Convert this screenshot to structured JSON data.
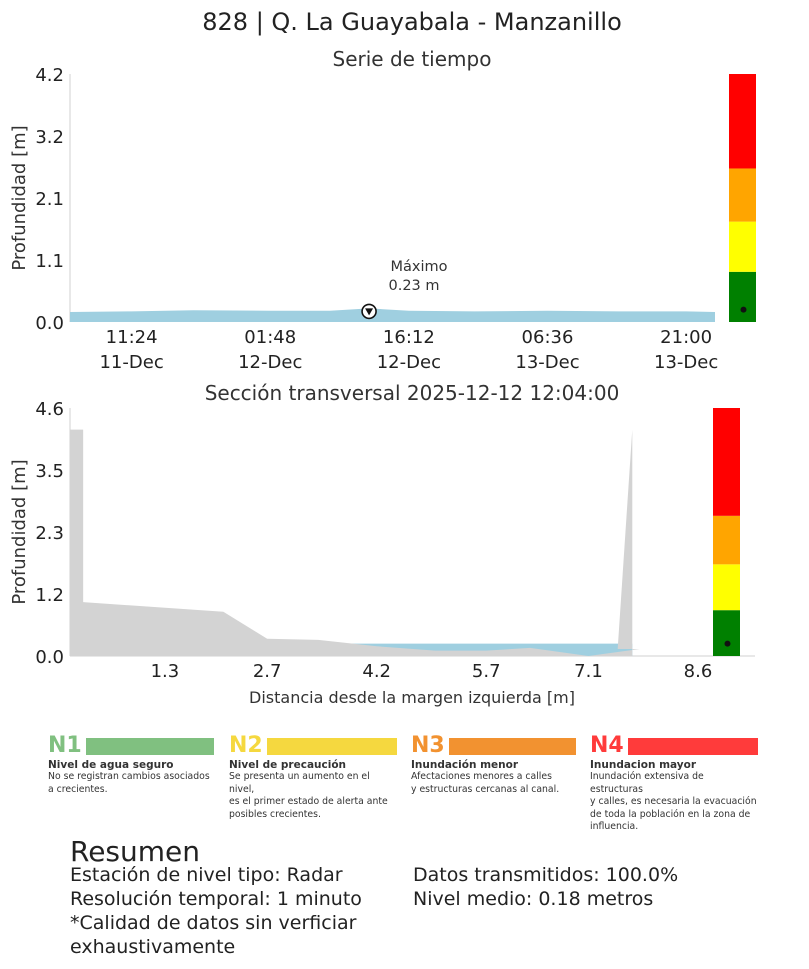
{
  "page": {
    "title": "828 | Q. La Guayabala - Manzanillo"
  },
  "colors": {
    "water": "#9fcfe0",
    "ground": "#d3d3d3",
    "n1": "#008000",
    "n2": "#ffff00",
    "n3": "#ffa500",
    "n4": "#ff0000"
  },
  "chart_data": [
    {
      "type": "area",
      "title": "Serie de tiempo",
      "ylabel": "Profundidad [m]",
      "xlabel": "",
      "ylim": [
        0,
        4.2
      ],
      "yticks": [
        "0.0",
        "1.1",
        "2.1",
        "3.2",
        "4.2"
      ],
      "xticks": [
        {
          "time": "11:24",
          "date": "11-Dec"
        },
        {
          "time": "01:48",
          "date": "12-Dec"
        },
        {
          "time": "16:12",
          "date": "12-Dec"
        },
        {
          "time": "06:36",
          "date": "13-Dec"
        },
        {
          "time": "21:00",
          "date": "13-Dec"
        }
      ],
      "x": [
        "2025-12-11 05:00",
        "2025-12-11 11:24",
        "2025-12-11 17:48",
        "2025-12-12 01:48",
        "2025-12-12 08:00",
        "2025-12-12 12:04",
        "2025-12-12 16:12",
        "2025-12-12 23:00",
        "2025-12-13 06:36",
        "2025-12-13 14:00",
        "2025-12-13 21:00",
        "2025-12-14 00:00"
      ],
      "series": [
        {
          "values": [
            0.17,
            0.18,
            0.2,
            0.19,
            0.19,
            0.23,
            0.19,
            0.18,
            0.19,
            0.18,
            0.18,
            0.17
          ]
        }
      ],
      "annotation": {
        "label": "Máximo",
        "value_label": "0.23 m",
        "x": "2025-12-12 12:04",
        "y": 0.23
      },
      "level_bar": {
        "ylim": [
          0,
          4.2
        ],
        "thresholds": [
          0.85,
          1.7,
          2.6,
          4.2
        ],
        "current": 0.21
      },
      "grid": false
    },
    {
      "type": "area",
      "title": "Sección transversal 2025-12-12 12:04:00",
      "xlabel": "Distancia desde la margen izquierda [m]",
      "ylabel": "Profundidad [m]",
      "ylim": [
        0,
        4.6
      ],
      "xlim": [
        0,
        8.6
      ],
      "yticks": [
        "0.0",
        "1.2",
        "2.3",
        "3.5",
        "4.6"
      ],
      "xticks": [
        "1.3",
        "2.7",
        "4.2",
        "5.7",
        "7.1",
        "8.6"
      ],
      "ground_x": [
        0,
        0,
        0.18,
        0.18,
        2.1,
        2.7,
        3.4,
        4.2,
        5.0,
        5.7,
        6.3,
        7.1,
        7.8,
        7.5,
        7.5,
        7.7,
        7.7
      ],
      "ground_y": [
        0,
        4.2,
        4.2,
        1.0,
        0.82,
        0.32,
        0.3,
        0.18,
        0.1,
        0.1,
        0.15,
        0.0,
        0.13,
        0.13,
        0.13,
        4.2,
        0
      ],
      "water_level": 0.23,
      "level_bar": {
        "ylim": [
          0,
          4.6
        ],
        "thresholds": [
          0.85,
          1.7,
          2.6,
          4.6
        ],
        "current": 0.23
      },
      "grid": false
    }
  ],
  "legend": [
    {
      "code": "N1",
      "title": "Nivel de agua seguro",
      "desc": [
        "No se registran cambios asociados",
        "a crecientes."
      ]
    },
    {
      "code": "N2",
      "title": "Nivel de precaución",
      "desc": [
        "Se presenta un aumento en el nivel,",
        "es el primer estado de alerta ante",
        "posibles crecientes."
      ]
    },
    {
      "code": "N3",
      "title": "Inundación menor",
      "desc": [
        "Afectaciones menores a calles",
        "y estructuras cercanas al canal."
      ]
    },
    {
      "code": "N4",
      "title": "Inundacion mayor",
      "desc": [
        "Inundación extensiva de estructuras",
        "y calles, es necesaria la evacuación",
        "de toda la población en la zona de",
        "influencia."
      ]
    }
  ],
  "summary": {
    "title": "Resumen",
    "left": [
      "Estación de nivel tipo: Radar",
      "Resolución temporal: 1 minuto",
      "*Calidad de datos sin verficiar",
      "exhaustivamente"
    ],
    "right": [
      "Datos transmitidos: 100.0%",
      "Nivel medio: 0.18 metros"
    ]
  }
}
